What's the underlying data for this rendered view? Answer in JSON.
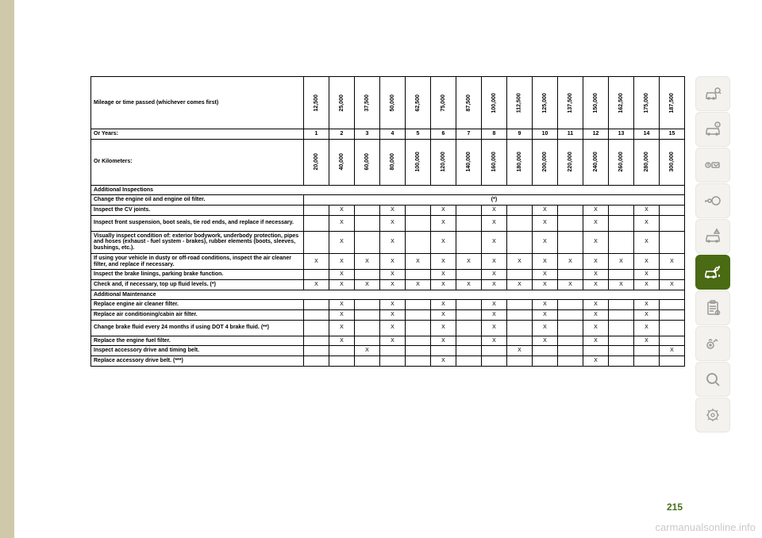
{
  "page_number": "215",
  "watermark": "carmanualsonline.info",
  "colors": {
    "page_accent": "#497018",
    "rail_bg": "#f3f2ee",
    "rail_active": "#4a6a13",
    "rail_icon": "#9a9a94",
    "page_border_bg": "#d0c9a9"
  },
  "header": {
    "title": "Mileage or time passed (whichever comes first)",
    "miles": [
      "12,500",
      "25,000",
      "37,500",
      "50,000",
      "62,500",
      "75,000",
      "87,500",
      "100,000",
      "112,500",
      "125,000",
      "137,500",
      "150,000",
      "162,500",
      "175,000",
      "187,500"
    ],
    "years_label": "Or Years:",
    "years": [
      "1",
      "2",
      "3",
      "4",
      "5",
      "6",
      "7",
      "8",
      "9",
      "10",
      "11",
      "12",
      "13",
      "14",
      "15"
    ],
    "km_label": "Or Kilometers:",
    "km": [
      "20,000",
      "40,000",
      "60,000",
      "80,000",
      "100,000",
      "120,000",
      "140,000",
      "160,000",
      "180,000",
      "200,000",
      "220,000",
      "240,000",
      "260,000",
      "280,000",
      "300,000"
    ]
  },
  "sections": {
    "inspections": "Additional Inspections",
    "maintenance": "Additional Maintenance"
  },
  "rows": [
    {
      "label": "Change the engine oil and engine oil filter.",
      "span_note": "(*)"
    },
    {
      "label": "Inspect the CV joints.",
      "marks": [
        "",
        "X",
        "",
        "X",
        "",
        "X",
        "",
        "X",
        "",
        "X",
        "",
        "X",
        "",
        "X",
        ""
      ]
    },
    {
      "label": "Inspect front suspension, boot seals, tie rod ends, and replace if necessary.",
      "marks": [
        "",
        "X",
        "",
        "X",
        "",
        "X",
        "",
        "X",
        "",
        "X",
        "",
        "X",
        "",
        "X",
        ""
      ]
    },
    {
      "label": "Visually inspect condition of: exterior bodywork, underbody protection, pipes and hoses (exhaust - fuel system - brakes), rubber elements (boots, sleeves, bushings, etc.).",
      "marks": [
        "",
        "X",
        "",
        "X",
        "",
        "X",
        "",
        "X",
        "",
        "X",
        "",
        "X",
        "",
        "X",
        ""
      ]
    },
    {
      "label": "If using your vehicle in dusty or off-road conditions, inspect the air cleaner filter, and replace if necessary.",
      "marks": [
        "X",
        "X",
        "X",
        "X",
        "X",
        "X",
        "X",
        "X",
        "X",
        "X",
        "X",
        "X",
        "X",
        "X",
        "X"
      ]
    },
    {
      "label": "Inspect the brake linings, parking brake function.",
      "marks": [
        "",
        "X",
        "",
        "X",
        "",
        "X",
        "",
        "X",
        "",
        "X",
        "",
        "X",
        "",
        "X",
        ""
      ]
    },
    {
      "label": "Check and, if necessary, top up fluid levels. (*)",
      "marks": [
        "X",
        "X",
        "X",
        "X",
        "X",
        "X",
        "X",
        "X",
        "X",
        "X",
        "X",
        "X",
        "X",
        "X",
        "X"
      ]
    },
    {
      "label": "Replace engine air cleaner filter.",
      "marks": [
        "",
        "X",
        "",
        "X",
        "",
        "X",
        "",
        "X",
        "",
        "X",
        "",
        "X",
        "",
        "X",
        ""
      ]
    },
    {
      "label": "Replace air conditioning/cabin air filter.",
      "marks": [
        "",
        "X",
        "",
        "X",
        "",
        "X",
        "",
        "X",
        "",
        "X",
        "",
        "X",
        "",
        "X",
        ""
      ]
    },
    {
      "label": "Change brake fluid every 24 months if using DOT 4 brake fluid. (**)",
      "marks": [
        "",
        "X",
        "",
        "X",
        "",
        "X",
        "",
        "X",
        "",
        "X",
        "",
        "X",
        "",
        "X",
        ""
      ]
    },
    {
      "label": "Replace the engine fuel filter.",
      "marks": [
        "",
        "X",
        "",
        "X",
        "",
        "X",
        "",
        "X",
        "",
        "X",
        "",
        "X",
        "",
        "X",
        ""
      ]
    },
    {
      "label": "Inspect accessory drive and timing belt.",
      "marks": [
        "",
        "",
        "X",
        "",
        "",
        "",
        "",
        "",
        "X",
        "",
        "",
        "",
        "",
        "",
        "X"
      ]
    },
    {
      "label": "Replace accessory drive belt. (***)",
      "marks": [
        "",
        "",
        "",
        "",
        "",
        "X",
        "",
        "",
        "",
        "",
        "",
        "X",
        "",
        "",
        ""
      ]
    }
  ],
  "rail_icons": [
    {
      "name": "car-search-icon"
    },
    {
      "name": "info-icon"
    },
    {
      "name": "dashboard-icon"
    },
    {
      "name": "key-icon"
    },
    {
      "name": "car-warning-icon"
    },
    {
      "name": "car-wrench-icon",
      "active": true
    },
    {
      "name": "clipboard-icon"
    },
    {
      "name": "media-icon"
    },
    {
      "name": "magnifier-icon"
    },
    {
      "name": "gear-abc-icon"
    }
  ]
}
